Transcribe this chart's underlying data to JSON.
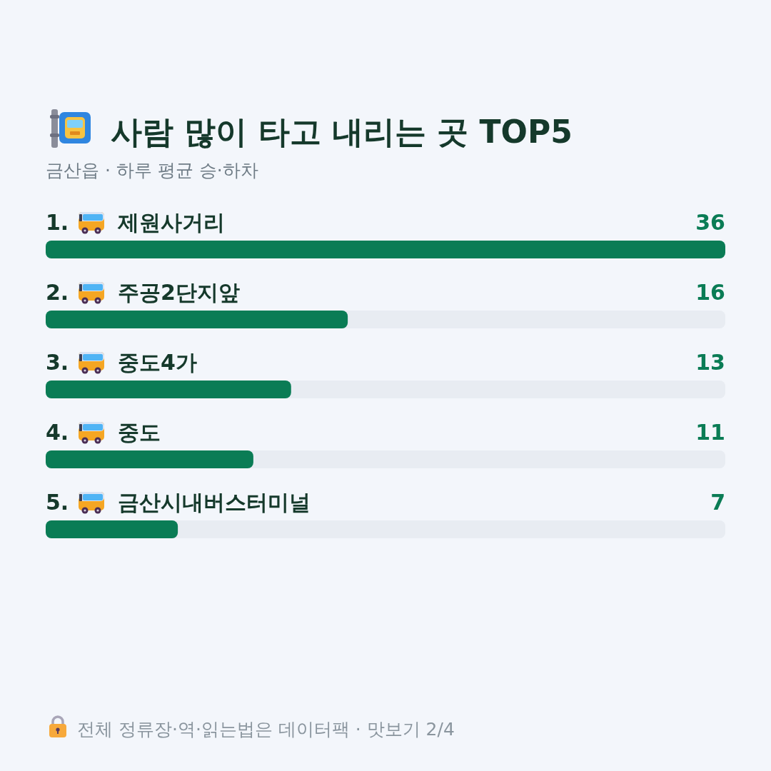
{
  "chart_data": {
    "type": "bar",
    "orientation": "horizontal",
    "title": "사람 많이 타고 내리는 곳 TOP5",
    "subtitle": "금산읍 · 하루 평균 승·하차",
    "categories": [
      "1. 제원사거리",
      "2. 주공2단지앞",
      "3. 중도4가",
      "4. 중도",
      "5. 금산시내버스터미널"
    ],
    "values": [
      36,
      16,
      13,
      11,
      7
    ],
    "color": "#0a7c55",
    "data_labels": true,
    "annotations": [
      "전체 정류장·역·읽는법은 데이터팩 · 맛보기 2/4"
    ]
  }
}
